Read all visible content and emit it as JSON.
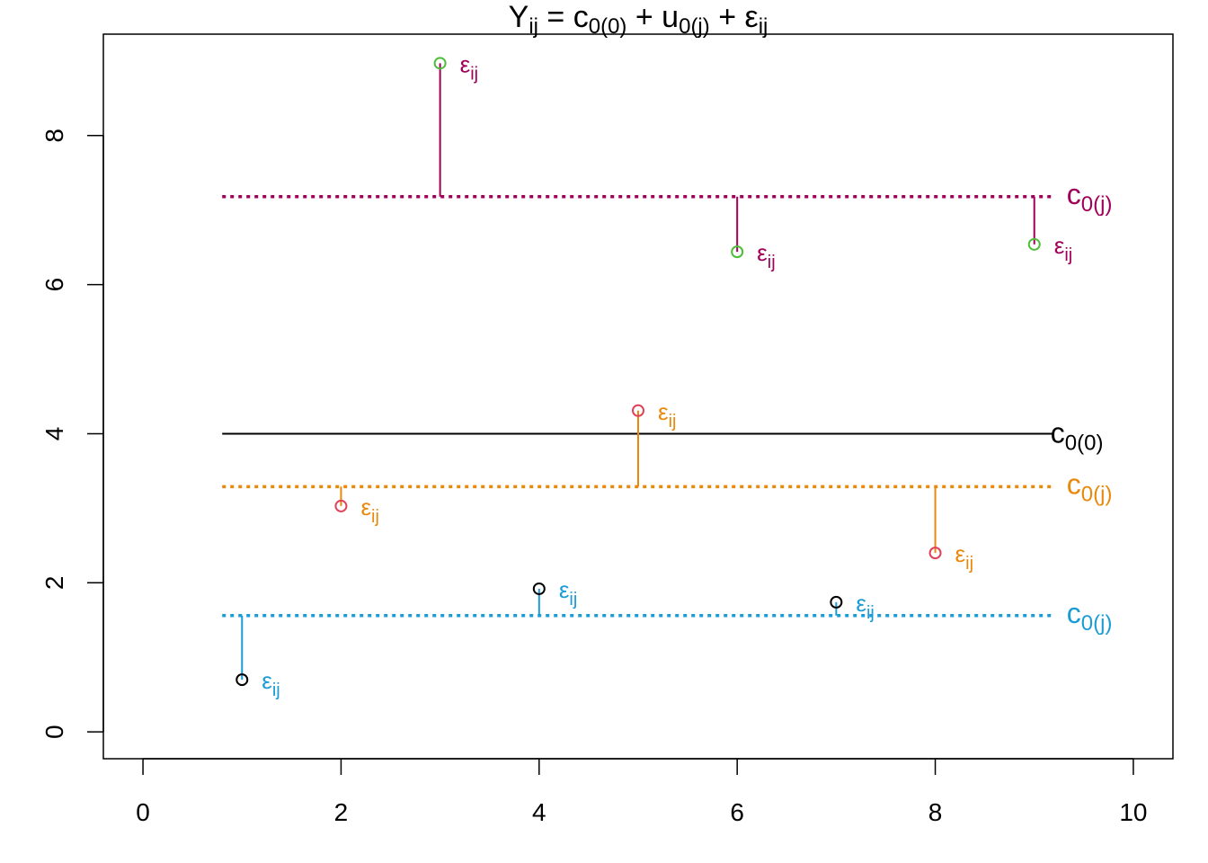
{
  "chart_data": {
    "type": "scatter",
    "title": {
      "base_Y": "Y",
      "sub_Y": "ij",
      "eq": " = ",
      "c": "c",
      "sub_c": "0(0)",
      "plus1": " + ",
      "u": "u",
      "sub_u": "0(j)",
      "plus2": " + ",
      "eps": "ε",
      "sub_eps": "ij"
    },
    "xlim": [
      -0.4,
      10.4
    ],
    "ylim": [
      -0.36,
      9.36
    ],
    "x_ticks": [
      0,
      2,
      4,
      6,
      8,
      10
    ],
    "y_ticks": [
      0,
      2,
      4,
      6,
      8
    ],
    "grand_mean": {
      "value": 4.0,
      "x_range": [
        0.8,
        9.2
      ],
      "label": "c",
      "label_sub": "0(0)",
      "color": "#000000"
    },
    "groups": [
      {
        "mean": 7.18,
        "color": "#A0005A",
        "point_color": "#4DBD3A",
        "label": "c",
        "label_sub": "0(j)",
        "points": [
          {
            "x": 3,
            "y": 8.97
          },
          {
            "x": 6,
            "y": 6.44
          },
          {
            "x": 9,
            "y": 6.54
          }
        ]
      },
      {
        "mean": 3.29,
        "color": "#E8890C",
        "point_color": "#E0425A",
        "label": "c",
        "label_sub": "0(j)",
        "points": [
          {
            "x": 2,
            "y": 3.03
          },
          {
            "x": 5,
            "y": 4.31
          },
          {
            "x": 8,
            "y": 2.4
          }
        ]
      },
      {
        "mean": 1.56,
        "color": "#1B9CD6",
        "point_color": "#000000",
        "label": "c",
        "label_sub": "0(j)",
        "points": [
          {
            "x": 1,
            "y": 0.7
          },
          {
            "x": 4,
            "y": 1.92
          },
          {
            "x": 7,
            "y": 1.74
          }
        ]
      }
    ],
    "group_line_x_range": [
      0.8,
      9.2
    ],
    "residual_label": "ε",
    "residual_label_sub": "ij"
  }
}
